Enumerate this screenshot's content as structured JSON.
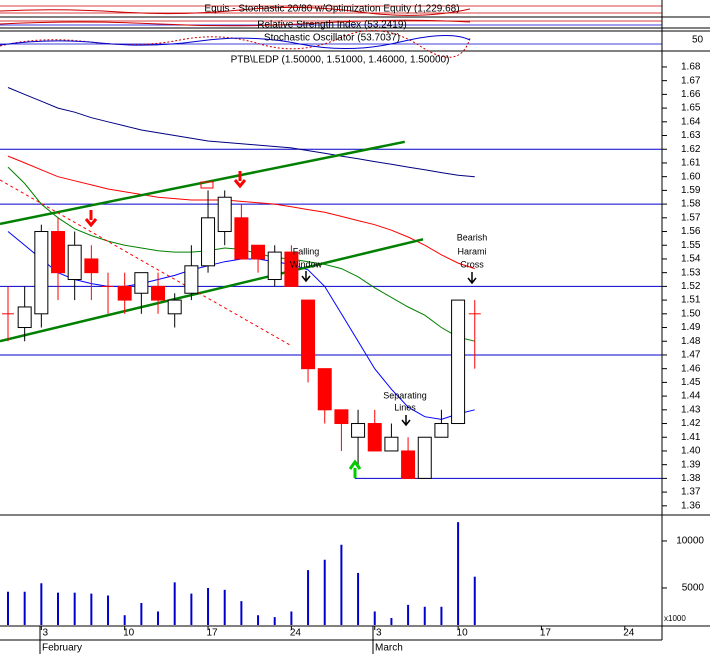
{
  "chart_data": {
    "type": "candlestick",
    "title": "PTB\\LEDP (1.50000, 1.51000, 1.46000, 1.50000)",
    "indicator_titles": [
      "Equis - Stochastic 20/80 w/Optimization Equity (1,229.68)",
      "Relative Strength Index (53.2419)",
      "Stochastic Oscillator (53.7037)"
    ],
    "indicator_tick": 50,
    "categories": [
      null,
      null,
      "3",
      null,
      null,
      null,
      null,
      "10",
      null,
      null,
      null,
      null,
      "17",
      null,
      null,
      null,
      null,
      "24",
      null,
      null,
      null,
      null,
      "3",
      null,
      null,
      null,
      null,
      "10",
      null,
      null,
      null,
      null,
      "17",
      null,
      null,
      null,
      null,
      "24",
      null,
      null
    ],
    "months": [
      "February",
      "March"
    ],
    "open": [
      1.5,
      1.49,
      1.5,
      1.56,
      1.525,
      1.54,
      1.52,
      1.52,
      1.515,
      1.52,
      1.5,
      1.515,
      1.535,
      1.56,
      1.57,
      1.55,
      1.525,
      1.545,
      1.51,
      1.46,
      1.43,
      1.41,
      1.42,
      1.4,
      1.4,
      1.38,
      1.41,
      1.42,
      1.5,
      null,
      null,
      null,
      null,
      null,
      null,
      null,
      null,
      null,
      null,
      null
    ],
    "high": [
      1.52,
      1.52,
      1.565,
      1.57,
      1.56,
      1.55,
      1.53,
      1.53,
      1.53,
      1.53,
      1.515,
      1.55,
      1.59,
      1.59,
      1.58,
      1.55,
      1.55,
      1.55,
      1.51,
      1.46,
      1.43,
      1.43,
      1.43,
      1.42,
      1.41,
      1.41,
      1.43,
      1.51,
      1.51,
      null,
      null,
      null,
      null,
      null,
      null,
      null,
      null,
      null,
      null,
      null
    ],
    "low": [
      1.48,
      1.48,
      1.49,
      1.51,
      1.51,
      1.51,
      1.5,
      1.5,
      1.5,
      1.5,
      1.49,
      1.51,
      1.53,
      1.55,
      1.54,
      1.53,
      1.52,
      1.52,
      1.45,
      1.42,
      1.4,
      1.39,
      1.4,
      1.4,
      1.38,
      1.38,
      1.41,
      1.42,
      1.46,
      null,
      null,
      null,
      null,
      null,
      null,
      null,
      null,
      null,
      null,
      null
    ],
    "close": [
      1.5,
      1.505,
      1.56,
      1.53,
      1.55,
      1.53,
      1.52,
      1.51,
      1.53,
      1.51,
      1.51,
      1.535,
      1.57,
      1.585,
      1.54,
      1.54,
      1.545,
      1.52,
      1.46,
      1.43,
      1.42,
      1.42,
      1.4,
      1.41,
      1.38,
      1.41,
      1.42,
      1.51,
      1.5,
      null,
      null,
      null,
      null,
      null,
      null,
      null,
      null,
      null,
      null,
      null
    ],
    "up_color": "#ffffff",
    "down_color": "#ff0000",
    "volume": [
      4600,
      4600,
      5500,
      4500,
      4500,
      4400,
      4200,
      2100,
      3400,
      2500,
      5600,
      4400,
      5000,
      4800,
      3600,
      2100,
      1900,
      2500,
      6900,
      8000,
      9600,
      6600,
      2500,
      1800,
      3200,
      3000,
      3000,
      12000,
      6200,
      null,
      null,
      null,
      null,
      null,
      null,
      null,
      null,
      null,
      null,
      null
    ],
    "volume_color": "#0000cc",
    "volume_ylim": [
      1060,
      12550
    ],
    "volume_yticks": [
      5000,
      10000
    ],
    "volume_unit": "x1000",
    "moving_averages": [
      {
        "color": "#000080",
        "values": [
          1.665,
          1.66,
          1.655,
          1.65,
          1.647,
          1.643,
          1.64,
          1.637,
          1.634,
          1.632,
          1.63,
          1.628,
          1.626,
          1.625,
          1.624,
          1.623,
          1.622,
          1.621,
          1.619,
          1.617,
          1.615,
          1.613,
          1.611,
          1.609,
          1.607,
          1.605,
          1.603,
          1.601,
          1.6,
          null,
          null,
          null,
          null,
          null,
          null,
          null,
          null,
          null,
          null,
          null
        ]
      },
      {
        "color": "#ff0000",
        "values": [
          1.615,
          1.61,
          1.605,
          1.6,
          1.597,
          1.594,
          1.591,
          1.589,
          1.587,
          1.585,
          1.584,
          1.583,
          1.583,
          1.583,
          1.582,
          1.581,
          1.58,
          1.578,
          1.576,
          1.574,
          1.571,
          1.568,
          1.565,
          1.561,
          1.556,
          1.55,
          1.543,
          1.537,
          1.533,
          null,
          null,
          null,
          null,
          null,
          null,
          null,
          null,
          null,
          null,
          null
        ]
      },
      {
        "color": "#008000",
        "values": [
          1.607,
          1.595,
          1.58,
          1.57,
          1.562,
          1.557,
          1.553,
          1.55,
          1.548,
          1.546,
          1.545,
          1.545,
          1.546,
          1.548,
          1.547,
          1.544,
          1.541,
          1.54,
          1.538,
          1.536,
          1.533,
          1.527,
          1.519,
          1.512,
          1.505,
          1.499,
          1.49,
          1.483,
          1.48,
          null,
          null,
          null,
          null,
          null,
          null,
          null,
          null,
          null,
          null,
          null
        ]
      },
      {
        "color": "#0000ff",
        "values": [
          1.56,
          1.55,
          1.54,
          1.53,
          1.525,
          1.522,
          1.52,
          1.52,
          1.522,
          1.525,
          1.528,
          1.532,
          1.535,
          1.538,
          1.54,
          1.54,
          1.538,
          1.536,
          1.532,
          1.52,
          1.5,
          1.48,
          1.46,
          1.445,
          1.432,
          1.425,
          1.423,
          1.427,
          1.43,
          null,
          null,
          null,
          null,
          null,
          null,
          null,
          null,
          null,
          null,
          null
        ]
      }
    ],
    "trendlines": [
      {
        "color": "#008000",
        "x": [
          -0.48,
          23.8
        ],
        "y": [
          1.5656,
          1.6254
        ]
      },
      {
        "color": "#008000",
        "x": [
          -0.48,
          24.9
        ],
        "y": [
          1.4801,
          1.5543
        ]
      },
      {
        "color": "#ff0000",
        "dashed": true,
        "x": [
          -0.48,
          16.9
        ],
        "y": [
          1.5976,
          1.4774
        ]
      }
    ],
    "hlines": [
      {
        "value": 1.62
      },
      {
        "value": 1.58
      },
      {
        "value": 1.52
      },
      {
        "value": 1.47
      },
      {
        "value": 1.38,
        "from": 20.8
      }
    ],
    "hline_color": "#0000cc",
    "ylim": [
      1.3533,
      1.6909
    ],
    "yticks": [
      1.36,
      1.37,
      1.38,
      1.39,
      {
        "value": 1.4,
        "label": "1.40"
      },
      1.41,
      1.42,
      1.43,
      1.44,
      1.45,
      1.46,
      1.47,
      1.48,
      1.49,
      {
        "value": 1.5,
        "label": "1.50"
      },
      1.51,
      1.52,
      1.53,
      1.54,
      1.55,
      1.56,
      1.57,
      1.58,
      1.59,
      {
        "value": 1.6,
        "label": "1.60"
      },
      1.61,
      1.62,
      1.63,
      1.64,
      1.65,
      1.66,
      1.67,
      1.68
    ],
    "annotations": [
      "Bearish",
      "Harami",
      "Cross",
      "Falling",
      "Window",
      "Separating",
      "Lines"
    ]
  }
}
